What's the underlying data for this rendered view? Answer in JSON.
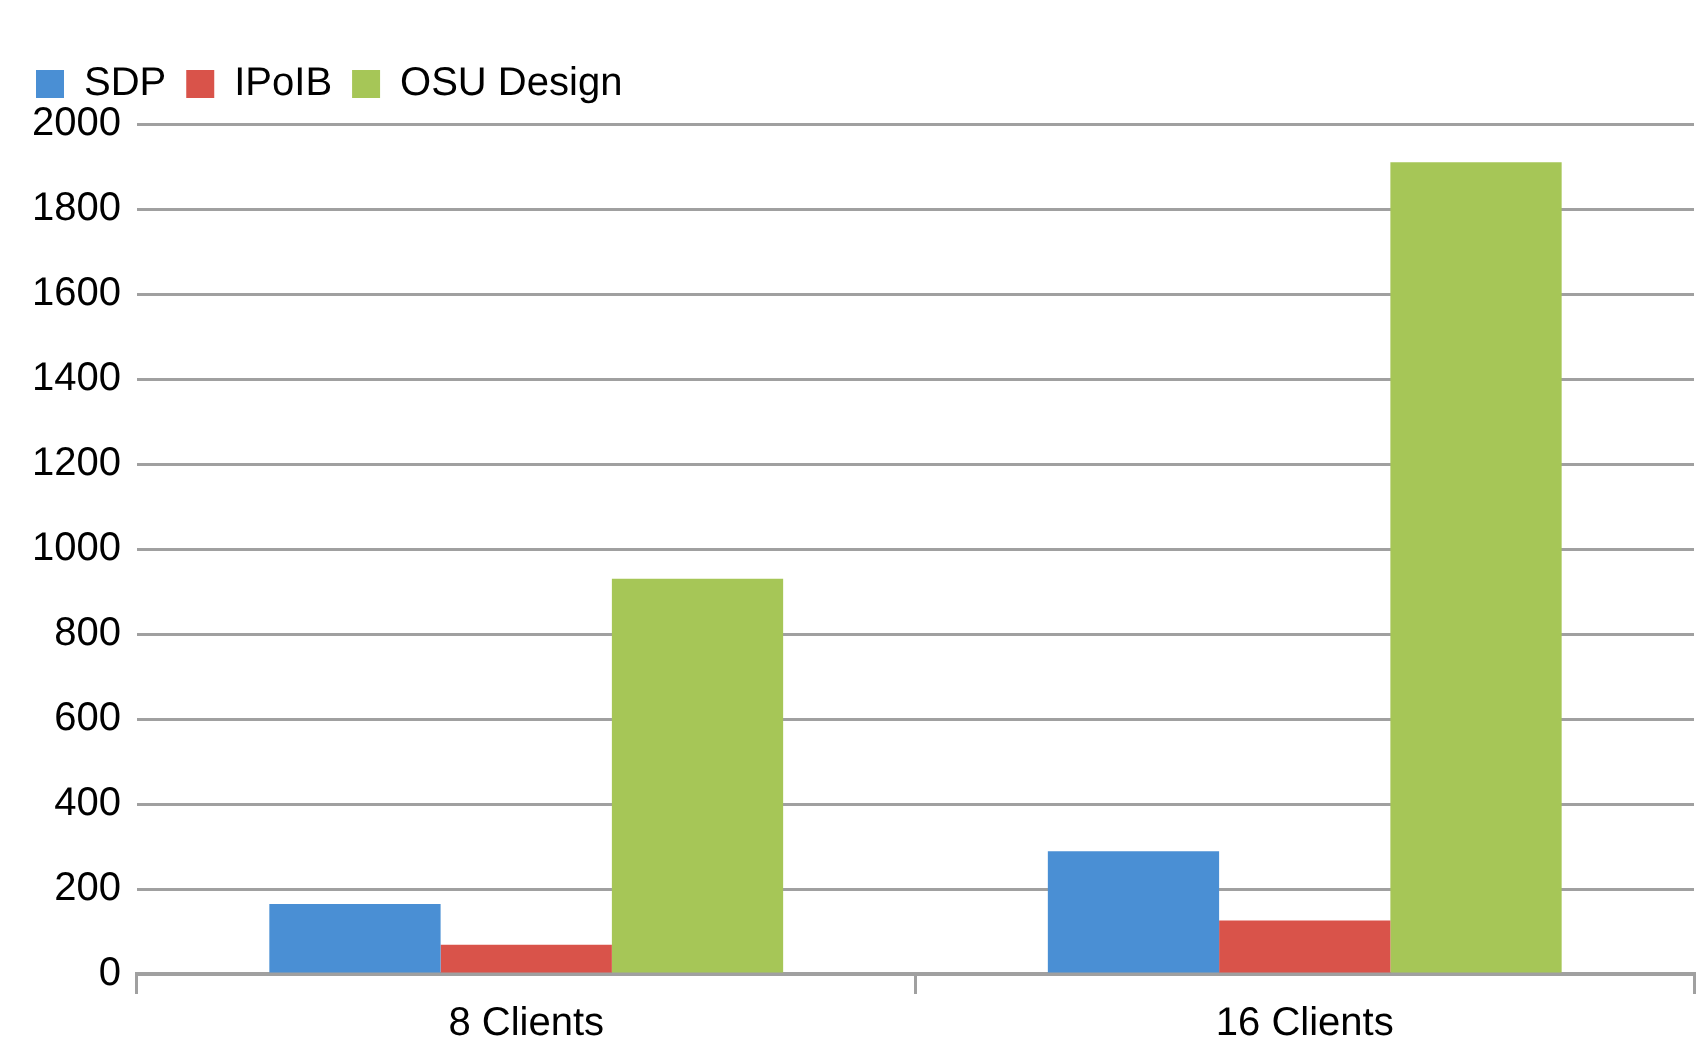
{
  "chart_data": {
    "type": "bar",
    "categories": [
      "8 Clients",
      "16 Clients"
    ],
    "series": [
      {
        "name": "SDP",
        "color": "#4a8fd4",
        "values": [
          165,
          289
        ]
      },
      {
        "name": "IPoIB",
        "color": "#d9534a",
        "values": [
          69,
          126
        ]
      },
      {
        "name": "OSU Design",
        "color": "#a6c657",
        "values": [
          930,
          1910
        ]
      }
    ],
    "ylim": [
      0,
      2000
    ],
    "yticks": [
      0,
      200,
      400,
      600,
      800,
      1000,
      1200,
      1400,
      1600,
      1800,
      2000
    ],
    "grid": "y",
    "legend": "top left"
  }
}
